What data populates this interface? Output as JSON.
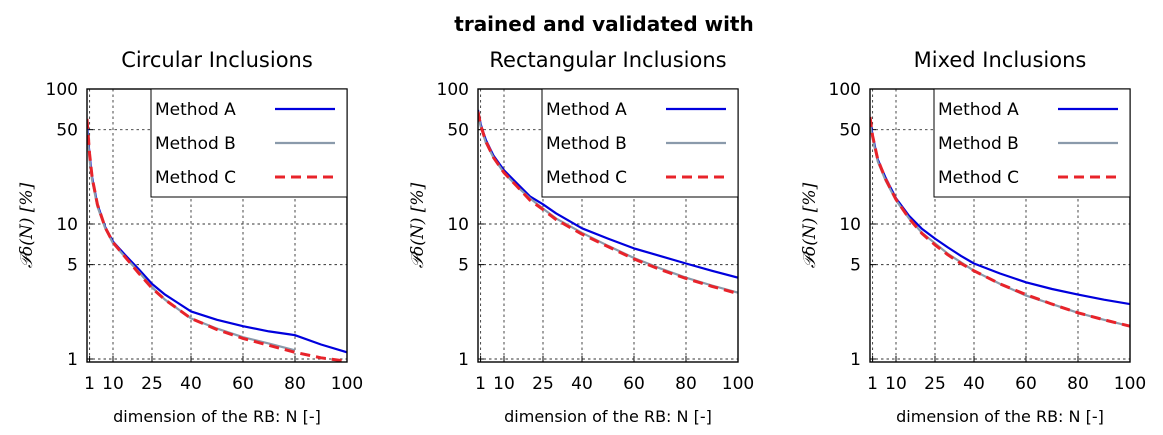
{
  "super_title": "trained and validated with",
  "chart_data": [
    {
      "type": "line",
      "title": "Circular Inclusions",
      "xlabel": "dimension of the RB: N [-]",
      "ylabel": "𝒫δ(N) [%]",
      "xlim": [
        0,
        100
      ],
      "ylim": [
        0.95,
        100
      ],
      "yscale": "log",
      "grid": true,
      "legend_position": "top-right",
      "xticks": [
        "1",
        "10",
        "25",
        "40",
        "60",
        "80",
        "100"
      ],
      "xtick_values": [
        1,
        10,
        25,
        40,
        60,
        80,
        100
      ],
      "yticks": [
        "1",
        "5",
        "10",
        "50",
        "100"
      ],
      "ytick_values": [
        1,
        5,
        10,
        50,
        100
      ],
      "series": [
        {
          "name": "Method A",
          "color": "#0000dd",
          "dash": "solid",
          "x": [
            0,
            1,
            2,
            4,
            7,
            10,
            15,
            20,
            25,
            30,
            35,
            40,
            50,
            60,
            70,
            78,
            80,
            90,
            100
          ],
          "y": [
            55,
            32,
            22,
            14,
            9.5,
            7.4,
            5.8,
            4.6,
            3.6,
            3.0,
            2.6,
            2.25,
            1.95,
            1.75,
            1.6,
            1.52,
            1.5,
            1.28,
            1.12
          ]
        },
        {
          "name": "Method B",
          "color": "#8a9aab",
          "dash": "solid",
          "x": [
            0,
            1,
            2,
            4,
            7,
            10,
            15,
            20,
            25,
            30,
            40,
            50,
            60,
            70,
            80
          ],
          "y": [
            50,
            30,
            21,
            13.5,
            9.3,
            7.2,
            5.6,
            4.4,
            3.4,
            2.75,
            2.0,
            1.68,
            1.45,
            1.3,
            1.16
          ]
        },
        {
          "name": "Method C",
          "color": "#e8232a",
          "dash": "dashed",
          "x": [
            0,
            1,
            2,
            4,
            7,
            10,
            15,
            20,
            25,
            30,
            40,
            50,
            60,
            70,
            80,
            90,
            100
          ],
          "y": [
            60,
            33,
            22,
            14,
            9.4,
            7.3,
            5.6,
            4.3,
            3.35,
            2.75,
            2.0,
            1.65,
            1.42,
            1.26,
            1.12,
            1.02,
            0.96
          ]
        }
      ]
    },
    {
      "type": "line",
      "title": "Rectangular Inclusions",
      "xlabel": "dimension of the RB: N [-]",
      "ylabel": "𝒫δ(N) [%]",
      "xlim": [
        0,
        100
      ],
      "ylim": [
        0.95,
        100
      ],
      "yscale": "log",
      "grid": true,
      "legend_position": "top-right",
      "xticks": [
        "1",
        "10",
        "25",
        "40",
        "60",
        "80",
        "100"
      ],
      "xtick_values": [
        1,
        10,
        25,
        40,
        60,
        80,
        100
      ],
      "yticks": [
        "1",
        "5",
        "10",
        "50",
        "100"
      ],
      "ytick_values": [
        1,
        5,
        10,
        50,
        100
      ],
      "series": [
        {
          "name": "Method A",
          "color": "#0000dd",
          "dash": "solid",
          "x": [
            0,
            1,
            3,
            6,
            10,
            15,
            20,
            25,
            30,
            40,
            50,
            60,
            70,
            80,
            90,
            100
          ],
          "y": [
            70,
            55,
            42,
            32,
            25,
            20,
            16,
            14,
            12,
            9.3,
            7.8,
            6.6,
            5.8,
            5.1,
            4.5,
            4.0
          ]
        },
        {
          "name": "Method B",
          "color": "#8a9aab",
          "dash": "solid",
          "x": [
            0,
            1,
            3,
            6,
            10,
            15,
            20,
            25,
            30,
            40,
            50,
            60,
            70,
            80,
            90,
            100
          ],
          "y": [
            65,
            53,
            40,
            31,
            24,
            19,
            15.5,
            13,
            11,
            8.6,
            6.9,
            5.6,
            4.7,
            4.0,
            3.5,
            3.1
          ]
        },
        {
          "name": "Method C",
          "color": "#e8232a",
          "dash": "dashed",
          "x": [
            0,
            1,
            3,
            6,
            10,
            15,
            20,
            25,
            30,
            40,
            50,
            60,
            70,
            80,
            90,
            100
          ],
          "y": [
            68,
            54,
            41,
            31,
            24,
            19,
            15,
            12.8,
            10.8,
            8.4,
            6.8,
            5.5,
            4.6,
            3.95,
            3.45,
            3.05
          ]
        }
      ]
    },
    {
      "type": "line",
      "title": "Mixed Inclusions",
      "xlabel": "dimension of the RB: N [-]",
      "ylabel": "𝒫δ(N) [%]",
      "xlim": [
        0,
        100
      ],
      "ylim": [
        0.95,
        100
      ],
      "yscale": "log",
      "grid": true,
      "legend_position": "top-right",
      "xticks": [
        "1",
        "10",
        "25",
        "40",
        "60",
        "80",
        "100"
      ],
      "xtick_values": [
        1,
        10,
        25,
        40,
        60,
        80,
        100
      ],
      "yticks": [
        "1",
        "5",
        "10",
        "50",
        "100"
      ],
      "ytick_values": [
        1,
        5,
        10,
        50,
        100
      ],
      "series": [
        {
          "name": "Method A",
          "color": "#0000dd",
          "dash": "solid",
          "x": [
            0,
            1,
            3,
            6,
            10,
            15,
            20,
            25,
            30,
            35,
            40,
            50,
            60,
            70,
            80,
            90,
            100
          ],
          "y": [
            60,
            45,
            30,
            22,
            15.5,
            11.5,
            9.2,
            7.8,
            6.7,
            5.8,
            5.1,
            4.3,
            3.7,
            3.3,
            3.0,
            2.75,
            2.55
          ]
        },
        {
          "name": "Method B",
          "color": "#8a9aab",
          "dash": "solid",
          "x": [
            0,
            1,
            3,
            6,
            10,
            15,
            20,
            25,
            30,
            35,
            40,
            50,
            60,
            70,
            80,
            90,
            100
          ],
          "y": [
            55,
            43,
            29,
            21,
            15,
            11,
            8.6,
            7.2,
            6.0,
            5.2,
            4.5,
            3.6,
            2.95,
            2.55,
            2.2,
            1.95,
            1.75
          ]
        },
        {
          "name": "Method C",
          "color": "#e8232a",
          "dash": "dashed",
          "x": [
            0,
            1,
            3,
            6,
            10,
            15,
            20,
            25,
            30,
            35,
            40,
            50,
            60,
            70,
            80,
            90,
            100
          ],
          "y": [
            62,
            45,
            30,
            21.5,
            15.2,
            11,
            8.5,
            7.0,
            5.9,
            5.1,
            4.5,
            3.6,
            3.0,
            2.55,
            2.2,
            1.95,
            1.75
          ]
        }
      ]
    }
  ]
}
